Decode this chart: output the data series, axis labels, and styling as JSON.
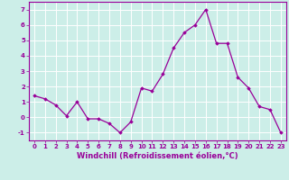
{
  "x": [
    0,
    1,
    2,
    3,
    4,
    5,
    6,
    7,
    8,
    9,
    10,
    11,
    12,
    13,
    14,
    15,
    16,
    17,
    18,
    19,
    20,
    21,
    22,
    23
  ],
  "y": [
    1.4,
    1.2,
    0.8,
    0.1,
    1.0,
    -0.1,
    -0.1,
    -0.4,
    -1.0,
    -0.3,
    1.9,
    1.7,
    2.8,
    4.5,
    5.5,
    6.0,
    7.0,
    4.8,
    4.8,
    2.6,
    1.9,
    0.7,
    0.5,
    -1.0
  ],
  "line_color": "#990099",
  "marker": "D",
  "marker_size": 1.8,
  "line_width": 0.9,
  "background_color": "#cceee8",
  "grid_color": "#ffffff",
  "xlabel": "Windchill (Refroidissement éolien,°C)",
  "xlabel_color": "#990099",
  "tick_color": "#990099",
  "ylim": [
    -1.5,
    7.5
  ],
  "xlim": [
    -0.5,
    23.5
  ],
  "yticks": [
    -1,
    0,
    1,
    2,
    3,
    4,
    5,
    6,
    7
  ],
  "xticks": [
    0,
    1,
    2,
    3,
    4,
    5,
    6,
    7,
    8,
    9,
    10,
    11,
    12,
    13,
    14,
    15,
    16,
    17,
    18,
    19,
    20,
    21,
    22,
    23
  ],
  "tick_fontsize": 5.0,
  "xlabel_fontsize": 6.0,
  "label_fontweight": "bold",
  "spine_color": "#990099"
}
